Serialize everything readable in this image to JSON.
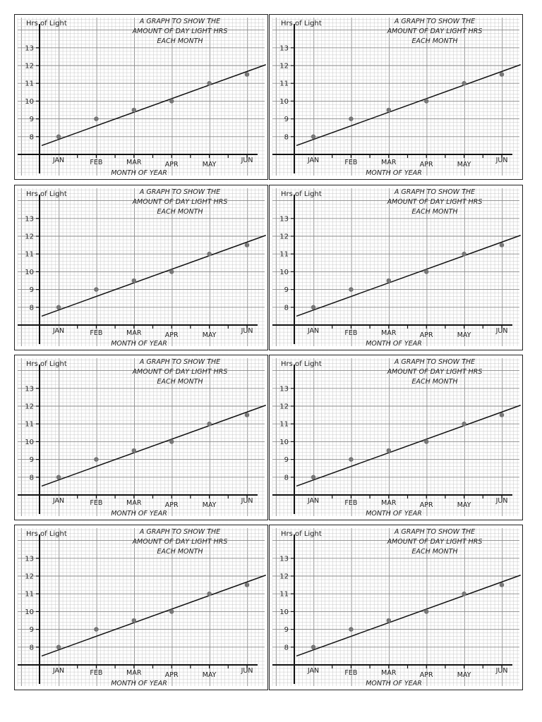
{
  "chart_data": [
    {
      "type": "scatter",
      "title_lines": [
        "A GRAPH TO SHOW THE",
        "AMOUNT OF DAY LIGHT HRS",
        "EACH MONTH"
      ],
      "ylabel": "Hrs of Light",
      "xlabel": "MONTH OF YEAR",
      "categories": [
        "JAN",
        "FEB",
        "MAR",
        "APR",
        "MAY",
        "JUN"
      ],
      "values": [
        8,
        9,
        9.5,
        10,
        11,
        11.5
      ],
      "yticks": [
        8,
        9,
        10,
        11,
        12,
        13
      ],
      "ylim": [
        7,
        13.5
      ],
      "grid": true,
      "trendline": {
        "from": [
          0.55,
          7.5
        ],
        "to": [
          6.5,
          12.05
        ]
      },
      "colors": {
        "points": "#777777",
        "line": "#111111",
        "grid": "#c8c8c8"
      }
    },
    {
      "type": "scatter",
      "title_lines": [
        "A GRAPH TO SHOW THE",
        "AMOUNT OF DAY LIGHT HRS",
        "EACH MONTH"
      ],
      "ylabel": "Hrs of Light",
      "xlabel": "MONTH OF YEAR",
      "categories": [
        "JAN",
        "FEB",
        "MAR",
        "APR",
        "MAY",
        "JUN"
      ],
      "values": [
        8,
        9,
        9.5,
        10,
        11,
        11.5
      ],
      "yticks": [
        8,
        9,
        10,
        11,
        12,
        13
      ],
      "ylim": [
        7,
        13.5
      ],
      "grid": true,
      "trendline": {
        "from": [
          0.55,
          7.5
        ],
        "to": [
          6.5,
          12.05
        ]
      },
      "colors": {
        "points": "#777777",
        "line": "#111111",
        "grid": "#c8c8c8"
      }
    },
    {
      "type": "scatter",
      "title_lines": [
        "A GRAPH TO SHOW THE",
        "AMOUNT OF DAY LIGHT HRS",
        "EACH MONTH"
      ],
      "ylabel": "Hrs of Light",
      "xlabel": "MONTH OF YEAR",
      "categories": [
        "JAN",
        "FEB",
        "MAR",
        "APR",
        "MAY",
        "JUN"
      ],
      "values": [
        8,
        9,
        9.5,
        10,
        11,
        11.5
      ],
      "yticks": [
        8,
        9,
        10,
        11,
        12,
        13
      ],
      "ylim": [
        7,
        13.5
      ],
      "grid": true,
      "trendline": {
        "from": [
          0.55,
          7.5
        ],
        "to": [
          6.5,
          12.05
        ]
      },
      "colors": {
        "points": "#777777",
        "line": "#111111",
        "grid": "#c8c8c8"
      }
    },
    {
      "type": "scatter",
      "title_lines": [
        "A GRAPH TO SHOW THE",
        "AMOUNT OF DAY LIGHT HRS",
        "EACH MONTH"
      ],
      "ylabel": "Hrs of Light",
      "xlabel": "MONTH OF YEAR",
      "categories": [
        "JAN",
        "FEB",
        "MAR",
        "APR",
        "MAY",
        "JUN"
      ],
      "values": [
        8,
        9,
        9.5,
        10,
        11,
        11.5
      ],
      "yticks": [
        8,
        9,
        10,
        11,
        12,
        13
      ],
      "ylim": [
        7,
        13.5
      ],
      "grid": true,
      "trendline": {
        "from": [
          0.55,
          7.5
        ],
        "to": [
          6.5,
          12.05
        ]
      },
      "colors": {
        "points": "#777777",
        "line": "#111111",
        "grid": "#c8c8c8"
      }
    },
    {
      "type": "scatter",
      "title_lines": [
        "A GRAPH TO SHOW THE",
        "AMOUNT OF DAY LIGHT HRS",
        "EACH MONTH"
      ],
      "ylabel": "Hrs of Light",
      "xlabel": "MONTH OF YEAR",
      "categories": [
        "JAN",
        "FEB",
        "MAR",
        "APR",
        "MAY",
        "JUN"
      ],
      "values": [
        8,
        9,
        9.5,
        10,
        11,
        11.5
      ],
      "yticks": [
        8,
        9,
        10,
        11,
        12,
        13
      ],
      "ylim": [
        7,
        13.5
      ],
      "grid": true,
      "trendline": {
        "from": [
          0.55,
          7.5
        ],
        "to": [
          6.5,
          12.05
        ]
      },
      "colors": {
        "points": "#777777",
        "line": "#111111",
        "grid": "#c8c8c8"
      }
    },
    {
      "type": "scatter",
      "title_lines": [
        "A GRAPH TO SHOW THE",
        "AMOUNT OF DAY LIGHT HRS",
        "EACH MONTH"
      ],
      "ylabel": "Hrs of Light",
      "xlabel": "MONTH OF YEAR",
      "categories": [
        "JAN",
        "FEB",
        "MAR",
        "APR",
        "MAY",
        "JUN"
      ],
      "values": [
        8,
        9,
        9.5,
        10,
        11,
        11.5
      ],
      "yticks": [
        8,
        9,
        10,
        11,
        12,
        13
      ],
      "ylim": [
        7,
        13.5
      ],
      "grid": true,
      "trendline": {
        "from": [
          0.55,
          7.5
        ],
        "to": [
          6.5,
          12.05
        ]
      },
      "colors": {
        "points": "#777777",
        "line": "#111111",
        "grid": "#c8c8c8"
      }
    },
    {
      "type": "scatter",
      "title_lines": [
        "A GRAPH TO SHOW THE",
        "AMOUNT OF DAY LIGHT HRS",
        "EACH MONTH"
      ],
      "ylabel": "Hrs of Light",
      "xlabel": "MONTH OF YEAR",
      "categories": [
        "JAN",
        "FEB",
        "MAR",
        "APR",
        "MAY",
        "JUN"
      ],
      "values": [
        8,
        9,
        9.5,
        10,
        11,
        11.5
      ],
      "yticks": [
        8,
        9,
        10,
        11,
        12,
        13
      ],
      "ylim": [
        7,
        13.5
      ],
      "grid": true,
      "trendline": {
        "from": [
          0.55,
          7.5
        ],
        "to": [
          6.5,
          12.05
        ]
      },
      "colors": {
        "points": "#777777",
        "line": "#111111",
        "grid": "#c8c8c8"
      }
    },
    {
      "type": "scatter",
      "title_lines": [
        "A GRAPH TO SHOW THE",
        "AMOUNT OF DAY LIGHT HRS",
        "EACH MONTH"
      ],
      "ylabel": "Hrs of Light",
      "xlabel": "MONTH OF YEAR",
      "categories": [
        "JAN",
        "FEB",
        "MAR",
        "APR",
        "MAY",
        "JUN"
      ],
      "values": [
        8,
        9,
        9.5,
        10,
        11,
        11.5
      ],
      "yticks": [
        8,
        9,
        10,
        11,
        12,
        13
      ],
      "ylim": [
        7,
        13.5
      ],
      "grid": true,
      "trendline": {
        "from": [
          0.55,
          7.5
        ],
        "to": [
          6.5,
          12.05
        ]
      },
      "colors": {
        "points": "#777777",
        "line": "#111111",
        "grid": "#c8c8c8"
      }
    }
  ]
}
